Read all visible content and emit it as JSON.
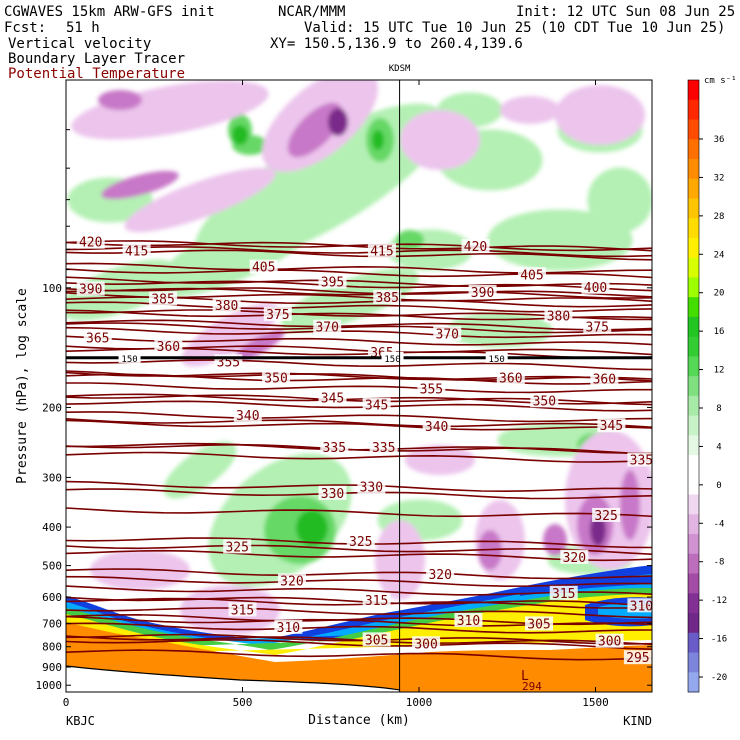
{
  "header": {
    "model": "CGWAVES 15km ARW-GFS init",
    "org": "NCAR/MMM",
    "init": "Init: 12 UTC Sun 08 Jun 25",
    "fcst_label": "Fcst:",
    "fcst_value": "51 h",
    "valid": "Valid: 15 UTC Tue 10 Jun 25 (10 CDT Tue 10 Jun 25)",
    "field1": "Vertical velocity",
    "field2": "Boundary Layer Tracer",
    "field3": "Potential Temperature",
    "xy": "XY= 150.5,136.9 to 260.4,139.6"
  },
  "colors": {
    "theta": "#7a0000",
    "tracer_orange": "#ff8c00",
    "tracer_yellow": "#ffee00",
    "tracer_green": "#44cc44",
    "tracer_cyan": "#00aaff",
    "tracer_blue": "#1040e0",
    "up_light": "#b4f0b4",
    "up_mid": "#66d866",
    "up_strong": "#22bb22",
    "down_light": "#ecc4ec",
    "down_mid": "#c878c8",
    "down_strong": "#7a2a8a"
  },
  "chart_data": {
    "type": "heatmap",
    "ylabel": "Pressure (hPa), log scale",
    "xlabel": "Distance (km)",
    "xlim": [
      0,
      1660
    ],
    "ylim": [
      1040,
      30
    ],
    "y_log_scale": true,
    "grid": false,
    "x_ticks": [
      0,
      500,
      1000,
      1500
    ],
    "x_tick_labels": [
      "0",
      "500",
      "1000",
      "1500"
    ],
    "y_ticks": [
      100,
      200,
      300,
      400,
      500,
      600,
      700,
      800,
      900,
      1000
    ],
    "y_tick_labels": [
      "100",
      "200",
      "300",
      "400",
      "500",
      "600",
      "700",
      "800",
      "900",
      "1000"
    ],
    "endpoint_labels": {
      "left": "KBJC",
      "right": "KIND"
    },
    "station_marker": {
      "label": "KDSM",
      "x": 945
    },
    "tropopause_label": "150",
    "tropopause_label_positions": [
      180,
      925,
      1220
    ],
    "tropopause_pressure": 150,
    "low_label": "L",
    "low_value": "294",
    "colorbar": {
      "unit": "cm s⁻¹",
      "ticks": [
        "36",
        "32",
        "28",
        "24",
        "20",
        "16",
        "12",
        "8",
        "4",
        "0",
        "-4",
        "-8",
        "-12",
        "-16",
        "-20"
      ],
      "colors": [
        "#ff0000",
        "#ff2800",
        "#ff4c00",
        "#ff7000",
        "#ff8c00",
        "#ffa800",
        "#ffc400",
        "#ffdc00",
        "#fff000",
        "#d8ff00",
        "#9eff00",
        "#44dd00",
        "#22c522",
        "#33cc33",
        "#55d855",
        "#80e080",
        "#a8eaa8",
        "#c8f2c8",
        "#e4f8e4",
        "#ffffff",
        "#ffffff",
        "#f0d8f0",
        "#e2b4e2",
        "#d092d0",
        "#bc6ebc",
        "#a24ca6",
        "#823094",
        "#702888",
        "#6a5cc8",
        "#7c84dc",
        "#94a8ee"
      ]
    },
    "theta_labels": [
      {
        "v": "420",
        "x": 70,
        "p": 77
      },
      {
        "v": "415",
        "x": 200,
        "p": 81
      },
      {
        "v": "415",
        "x": 895,
        "p": 81
      },
      {
        "v": "420",
        "x": 1160,
        "p": 79
      },
      {
        "v": "405",
        "x": 560,
        "p": 89
      },
      {
        "v": "395",
        "x": 755,
        "p": 97
      },
      {
        "v": "405",
        "x": 1320,
        "p": 93
      },
      {
        "v": "400",
        "x": 1500,
        "p": 100
      },
      {
        "v": "390",
        "x": 70,
        "p": 101
      },
      {
        "v": "385",
        "x": 275,
        "p": 107
      },
      {
        "v": "380",
        "x": 455,
        "p": 111
      },
      {
        "v": "375",
        "x": 600,
        "p": 117
      },
      {
        "v": "385",
        "x": 910,
        "p": 106
      },
      {
        "v": "390",
        "x": 1180,
        "p": 103
      },
      {
        "v": "380",
        "x": 1395,
        "p": 118
      },
      {
        "v": "375",
        "x": 1505,
        "p": 126
      },
      {
        "v": "370",
        "x": 740,
        "p": 126
      },
      {
        "v": "370",
        "x": 1080,
        "p": 131
      },
      {
        "v": "365",
        "x": 90,
        "p": 134
      },
      {
        "v": "360",
        "x": 290,
        "p": 141
      },
      {
        "v": "355",
        "x": 460,
        "p": 154
      },
      {
        "v": "365",
        "x": 895,
        "p": 146
      },
      {
        "v": "350",
        "x": 595,
        "p": 169
      },
      {
        "v": "355",
        "x": 1035,
        "p": 180
      },
      {
        "v": "360",
        "x": 1260,
        "p": 169
      },
      {
        "v": "360",
        "x": 1525,
        "p": 170
      },
      {
        "v": "345",
        "x": 755,
        "p": 190
      },
      {
        "v": "345",
        "x": 880,
        "p": 198
      },
      {
        "v": "350",
        "x": 1355,
        "p": 193
      },
      {
        "v": "340",
        "x": 515,
        "p": 210
      },
      {
        "v": "340",
        "x": 1050,
        "p": 224
      },
      {
        "v": "345",
        "x": 1545,
        "p": 223
      },
      {
        "v": "335",
        "x": 760,
        "p": 253
      },
      {
        "v": "335",
        "x": 900,
        "p": 253
      },
      {
        "v": "335",
        "x": 1630,
        "p": 272
      },
      {
        "v": "330",
        "x": 755,
        "p": 330
      },
      {
        "v": "330",
        "x": 865,
        "p": 318
      },
      {
        "v": "325",
        "x": 1530,
        "p": 375
      },
      {
        "v": "325",
        "x": 485,
        "p": 450
      },
      {
        "v": "325",
        "x": 835,
        "p": 436
      },
      {
        "v": "320",
        "x": 1440,
        "p": 478
      },
      {
        "v": "320",
        "x": 1060,
        "p": 528
      },
      {
        "v": "320",
        "x": 640,
        "p": 548
      },
      {
        "v": "315",
        "x": 1410,
        "p": 589
      },
      {
        "v": "315",
        "x": 880,
        "p": 614
      },
      {
        "v": "315",
        "x": 500,
        "p": 648
      },
      {
        "v": "310",
        "x": 1630,
        "p": 633
      },
      {
        "v": "310",
        "x": 1140,
        "p": 689
      },
      {
        "v": "310",
        "x": 630,
        "p": 717
      },
      {
        "v": "305",
        "x": 1340,
        "p": 703
      },
      {
        "v": "305",
        "x": 880,
        "p": 771
      },
      {
        "v": "300",
        "x": 1020,
        "p": 789
      },
      {
        "v": "300",
        "x": 1540,
        "p": 777
      },
      {
        "v": "295",
        "x": 1620,
        "p": 855
      }
    ]
  }
}
